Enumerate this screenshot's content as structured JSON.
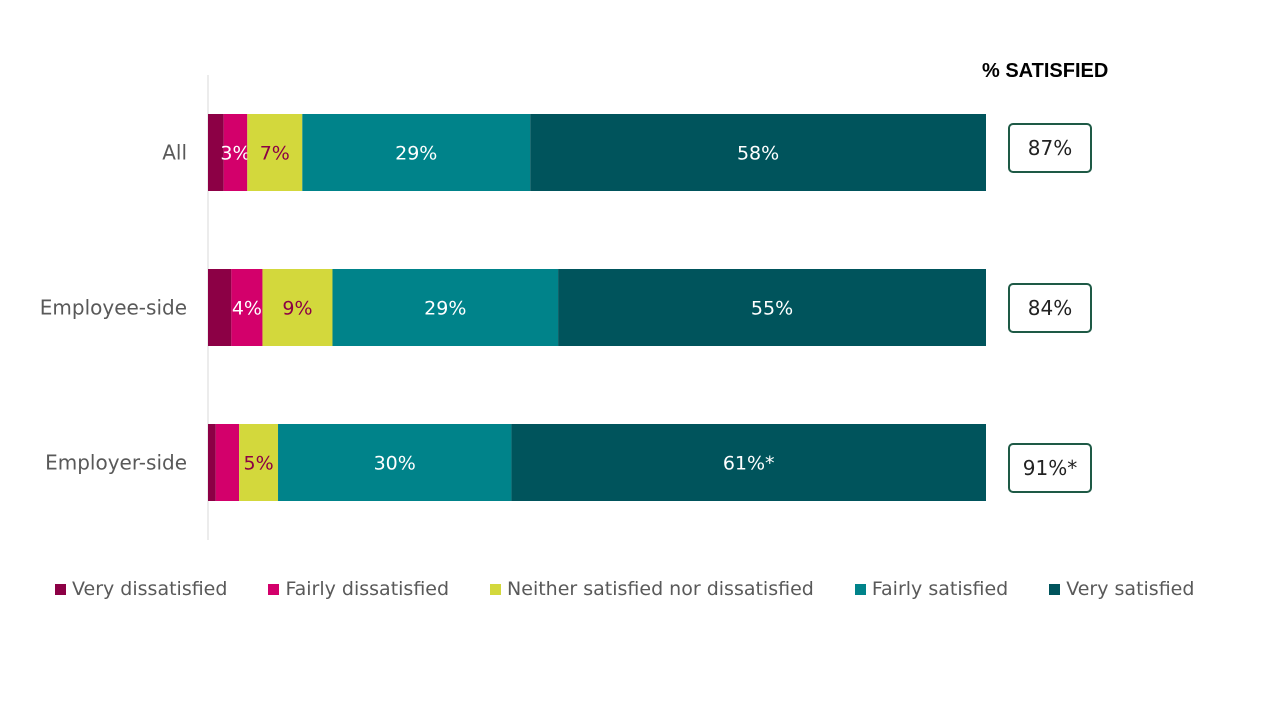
{
  "chart_data": {
    "type": "bar",
    "orientation": "horizontal",
    "stacked": true,
    "categories": [
      "All",
      "Employee-side",
      "Employer-side"
    ],
    "series": [
      {
        "name": "Very dissatisfied",
        "color": "#8c0045",
        "values": [
          2,
          3,
          1
        ],
        "labels": [
          "",
          "",
          ""
        ],
        "label_color": "#ffffff"
      },
      {
        "name": "Fairly dissatisfied",
        "color": "#d3006b",
        "values": [
          3,
          4,
          3
        ],
        "labels": [
          "3%",
          "4%",
          ""
        ],
        "label_color": "#ffffff"
      },
      {
        "name": "Neither satisfied nor dissatisfied",
        "color": "#d3d83c",
        "values": [
          7,
          9,
          5
        ],
        "labels": [
          "7%",
          "9%",
          "5%"
        ],
        "label_color": "#8c0045"
      },
      {
        "name": "Fairly satisfied",
        "color": "#00838a",
        "values": [
          29,
          29,
          30
        ],
        "labels": [
          "29%",
          "29%",
          "30%"
        ],
        "label_color": "#ffffff"
      },
      {
        "name": "Very satisfied",
        "color": "#00545c",
        "values": [
          58,
          55,
          61
        ],
        "labels": [
          "58%",
          "55%",
          "61%*"
        ],
        "label_color": "#ffffff"
      }
    ],
    "xlim": [
      0,
      100
    ],
    "grid": false,
    "legend": "bottom"
  },
  "satisfied": {
    "title": "% SATISFIED",
    "values": [
      "87%",
      "84%",
      "91%*"
    ],
    "border_color": "#1e5a46"
  }
}
